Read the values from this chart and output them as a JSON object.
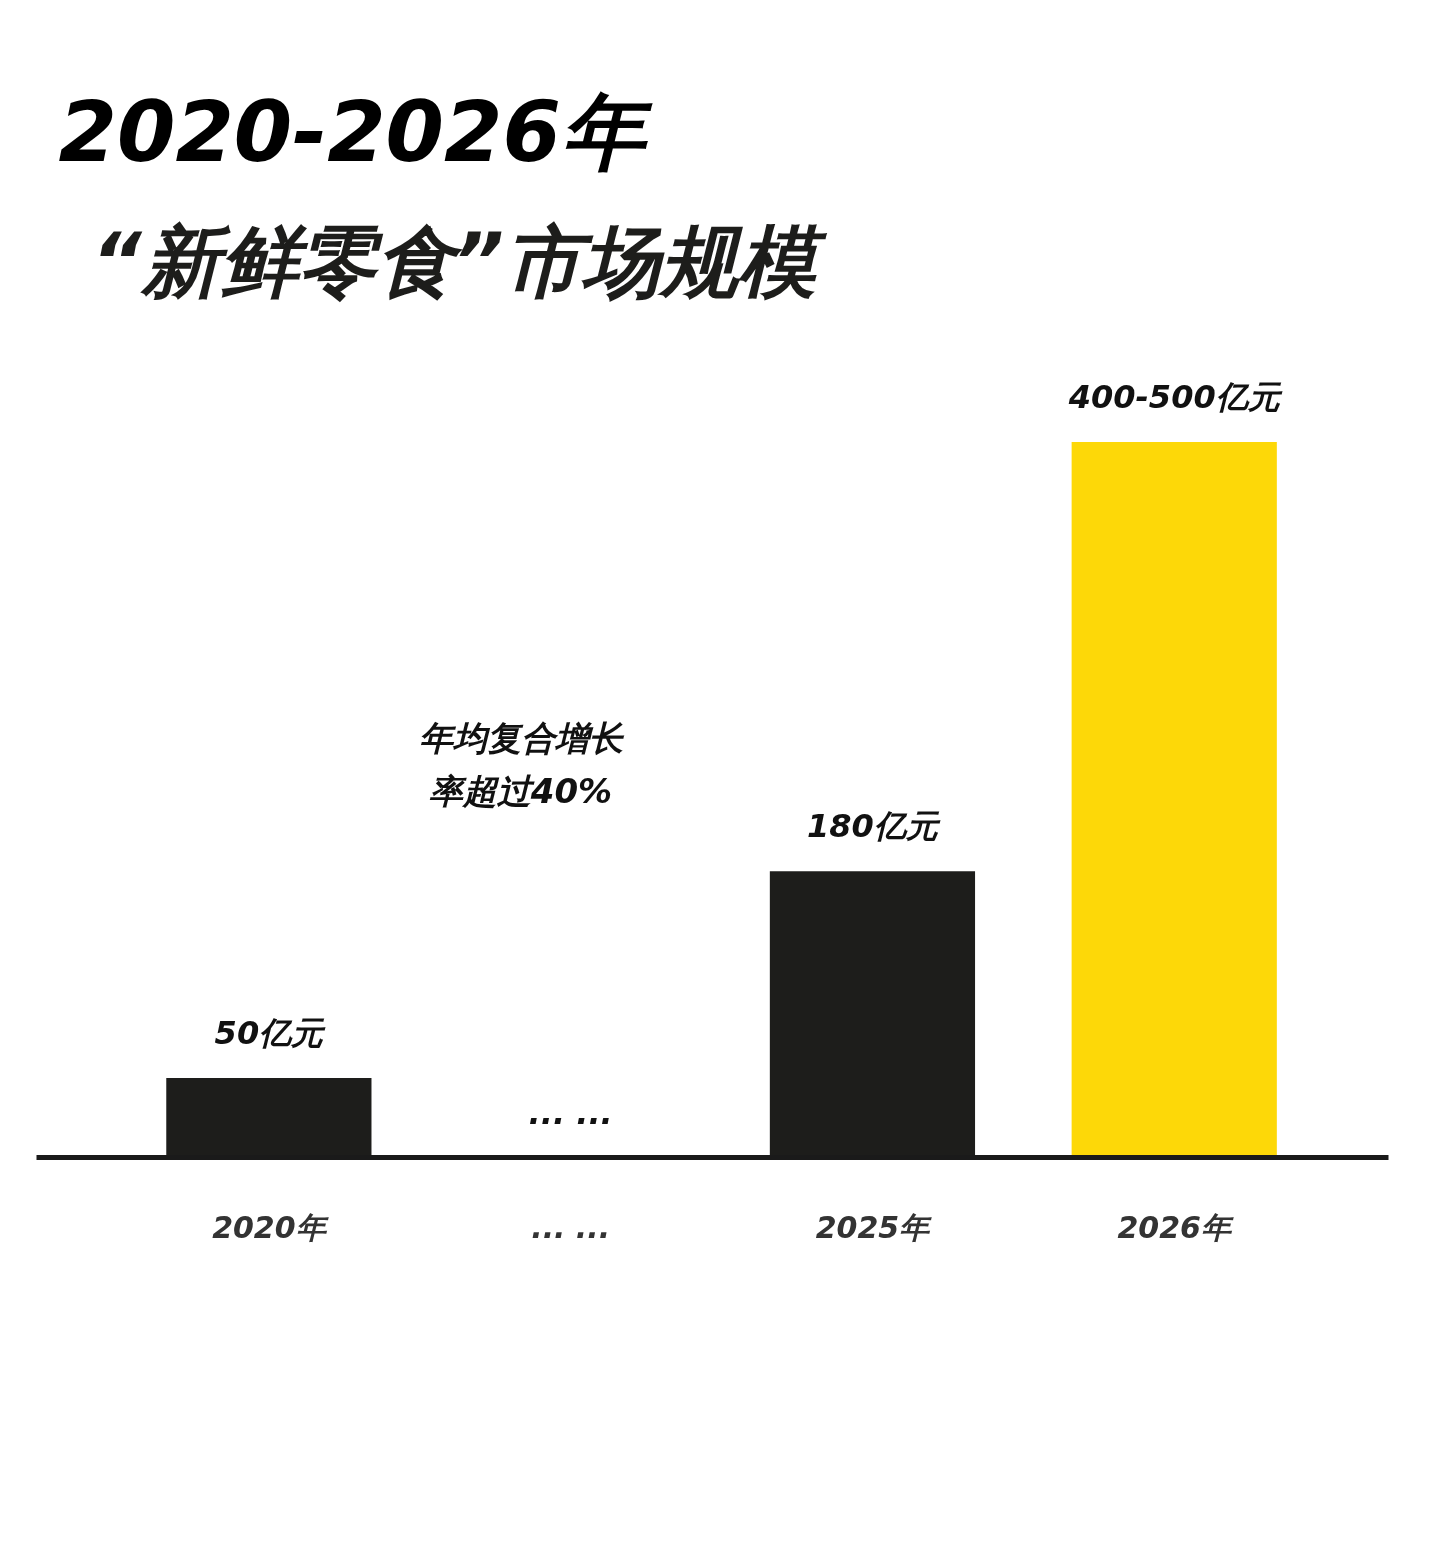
{
  "chart_data": {
    "type": "bar",
    "title": "2020-2026年",
    "subtitle": "“新鲜零食”市场规模",
    "categories": [
      "2020年",
      "... ...",
      "2025年",
      "2026年"
    ],
    "values": [
      50,
      null,
      180,
      450
    ],
    "colors": [
      "#1d1d1b",
      "#1d1d1b",
      "#1d1d1b",
      "#fdd808"
    ],
    "value_labels": [
      "50亿元",
      "... ...",
      "180亿元",
      "400-500亿元"
    ],
    "annotations": [
      "年均复合增长率超过40%"
    ],
    "tick_labels": "x"
  }
}
